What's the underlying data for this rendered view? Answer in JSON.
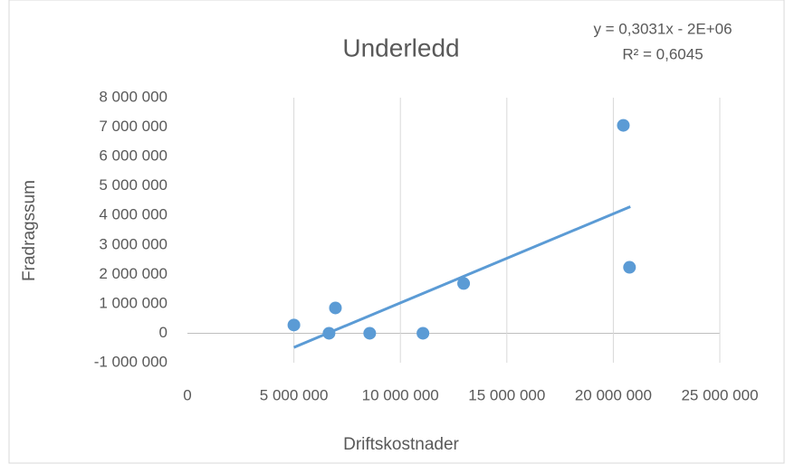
{
  "chart_data": {
    "type": "scatter",
    "title": "Underledd",
    "annotations": [
      "y = 0,3031x - 2E+06",
      "R² = 0,6045"
    ],
    "x_label": "Driftskostnader",
    "y_label": "Fradragssum",
    "color": "#5b9bd5",
    "x": [
      5000000,
      6650000,
      6950000,
      8560000,
      11060000,
      12970000,
      20470000,
      20760000
    ],
    "values": [
      280000,
      0,
      860000,
      0,
      0,
      1690000,
      7060000,
      2240000
    ],
    "trendline": {
      "x": [
        5000000,
        20800000
      ],
      "values": [
        -480000,
        4300000
      ]
    },
    "xlim": [
      0,
      25000000
    ],
    "xticks": [
      0,
      {
        "value": 5000000,
        "label": "5 000 000"
      },
      {
        "value": 10000000,
        "label": "10 000 000"
      },
      {
        "value": 15000000,
        "label": "15 000 000"
      },
      {
        "value": 20000000,
        "label": "20 000 000"
      },
      {
        "value": 25000000,
        "label": "25 000 000"
      }
    ],
    "ylim": [
      -1000000,
      8000000
    ],
    "yticks": [
      {
        "value": -1000000,
        "label": "-1 000 000"
      },
      0,
      {
        "value": 1000000,
        "label": "1 000 000"
      },
      {
        "value": 2000000,
        "label": "2 000 000"
      },
      {
        "value": 3000000,
        "label": "3 000 000"
      },
      {
        "value": 4000000,
        "label": "4 000 000"
      },
      {
        "value": 5000000,
        "label": "5 000 000"
      },
      {
        "value": 6000000,
        "label": "6 000 000"
      },
      {
        "value": 7000000,
        "label": "7 000 000"
      },
      {
        "value": 8000000,
        "label": "8 000 000"
      }
    ],
    "grid": "x"
  }
}
